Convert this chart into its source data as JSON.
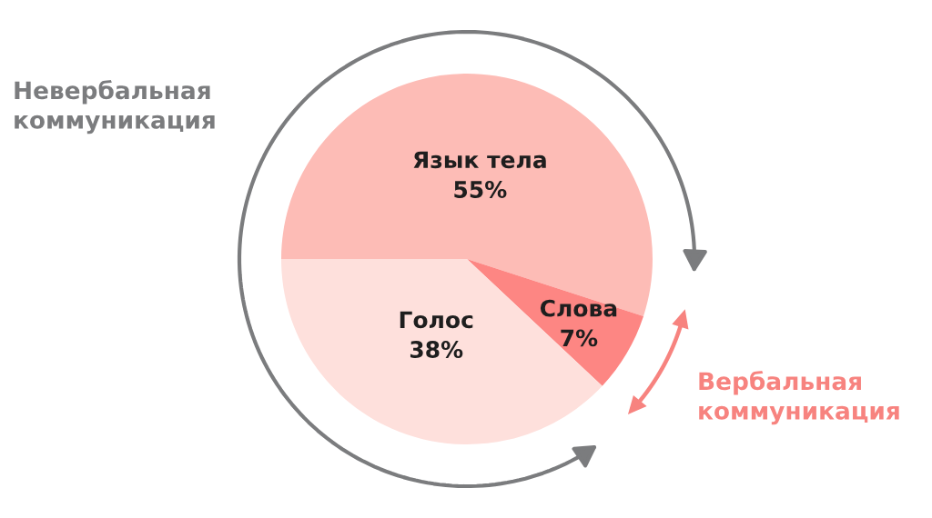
{
  "chart_data": {
    "type": "pie",
    "categories": [
      "Язык тела",
      "Слова",
      "Голос"
    ],
    "values": [
      55,
      7,
      38
    ],
    "colors": [
      "#fdbcb6",
      "#fd8683",
      "#fee0dc"
    ],
    "value_labels": [
      "55%",
      "7%",
      "38%"
    ],
    "annotations": [
      "Невербальная коммуникация",
      "Вербальная коммуникация"
    ]
  }
}
